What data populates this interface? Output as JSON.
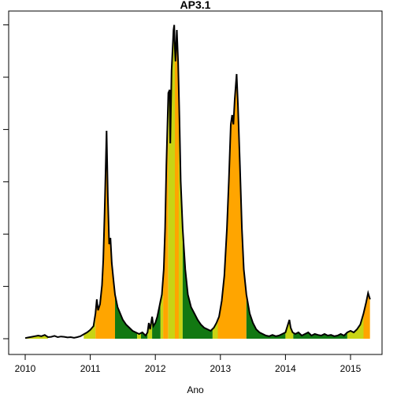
{
  "chart_data": {
    "type": "area",
    "title": "AP3.1",
    "xlabel": "Ano",
    "ylabel": "",
    "xlim": [
      2009.75,
      2015.5
    ],
    "ylim": [
      0,
      100
    ],
    "x_ticks": [
      2010,
      2011,
      2012,
      2013,
      2014,
      2015
    ],
    "x_tick_labels": [
      "2010",
      "2011",
      "2012",
      "2013",
      "2014",
      "2015"
    ],
    "y_ticks": [
      0,
      16.6,
      33.2,
      49.8,
      66.4,
      83.0,
      99.6
    ],
    "y_tick_labels": [],
    "grid": false,
    "legend": "none",
    "colors": {
      "line": "#000000",
      "yellow": "#c8d414",
      "orange": "#ffa500",
      "green": "#127812"
    },
    "bands": [
      {
        "x0": 2010.0,
        "x1": 2010.35,
        "color": "yellow"
      },
      {
        "x0": 2010.9,
        "x1": 2011.08,
        "color": "yellow"
      },
      {
        "x0": 2011.08,
        "x1": 2011.38,
        "color": "orange"
      },
      {
        "x0": 2011.38,
        "x1": 2011.72,
        "color": "green"
      },
      {
        "x0": 2011.72,
        "x1": 2011.78,
        "color": "yellow"
      },
      {
        "x0": 2011.78,
        "x1": 2011.88,
        "color": "green"
      },
      {
        "x0": 2011.88,
        "x1": 2011.95,
        "color": "yellow"
      },
      {
        "x0": 2011.95,
        "x1": 2012.08,
        "color": "green"
      },
      {
        "x0": 2012.08,
        "x1": 2012.12,
        "color": "yellow"
      },
      {
        "x0": 2012.12,
        "x1": 2012.2,
        "color": "orange"
      },
      {
        "x0": 2012.2,
        "x1": 2012.3,
        "color": "yellow"
      },
      {
        "x0": 2012.3,
        "x1": 2012.36,
        "color": "orange"
      },
      {
        "x0": 2012.36,
        "x1": 2012.42,
        "color": "yellow"
      },
      {
        "x0": 2012.42,
        "x1": 2012.88,
        "color": "green"
      },
      {
        "x0": 2012.88,
        "x1": 2012.96,
        "color": "yellow"
      },
      {
        "x0": 2012.96,
        "x1": 2013.4,
        "color": "orange"
      },
      {
        "x0": 2013.4,
        "x1": 2014.0,
        "color": "green"
      },
      {
        "x0": 2014.0,
        "x1": 2014.12,
        "color": "yellow"
      },
      {
        "x0": 2014.12,
        "x1": 2014.95,
        "color": "green"
      },
      {
        "x0": 2014.95,
        "x1": 2015.2,
        "color": "yellow"
      },
      {
        "x0": 2015.2,
        "x1": 2015.3,
        "color": "orange"
      }
    ],
    "series": [
      {
        "values": [
          [
            2010.0,
            0.2
          ],
          [
            2010.05,
            0.4
          ],
          [
            2010.1,
            0.6
          ],
          [
            2010.15,
            0.8
          ],
          [
            2010.2,
            1.0
          ],
          [
            2010.25,
            0.8
          ],
          [
            2010.3,
            1.2
          ],
          [
            2010.35,
            0.5
          ],
          [
            2010.4,
            0.6
          ],
          [
            2010.45,
            0.9
          ],
          [
            2010.5,
            0.5
          ],
          [
            2010.55,
            0.7
          ],
          [
            2010.6,
            0.6
          ],
          [
            2010.65,
            0.4
          ],
          [
            2010.7,
            0.5
          ],
          [
            2010.75,
            0.3
          ],
          [
            2010.8,
            0.5
          ],
          [
            2010.85,
            0.8
          ],
          [
            2010.9,
            1.4
          ],
          [
            2010.95,
            2.0
          ],
          [
            2011.0,
            2.8
          ],
          [
            2011.05,
            4.0
          ],
          [
            2011.08,
            8.0
          ],
          [
            2011.1,
            12.5
          ],
          [
            2011.12,
            9.0
          ],
          [
            2011.15,
            11.0
          ],
          [
            2011.18,
            17.0
          ],
          [
            2011.2,
            25.0
          ],
          [
            2011.22,
            40.0
          ],
          [
            2011.25,
            66.0
          ],
          [
            2011.27,
            45.0
          ],
          [
            2011.29,
            30.0
          ],
          [
            2011.31,
            32.0
          ],
          [
            2011.33,
            24.0
          ],
          [
            2011.36,
            18.0
          ],
          [
            2011.38,
            14.0
          ],
          [
            2011.42,
            10.0
          ],
          [
            2011.46,
            8.0
          ],
          [
            2011.5,
            6.0
          ],
          [
            2011.55,
            4.5
          ],
          [
            2011.6,
            3.5
          ],
          [
            2011.65,
            2.5
          ],
          [
            2011.7,
            2.0
          ],
          [
            2011.75,
            1.5
          ],
          [
            2011.8,
            2.0
          ],
          [
            2011.85,
            1.0
          ],
          [
            2011.88,
            2.0
          ],
          [
            2011.9,
            5.0
          ],
          [
            2011.92,
            3.0
          ],
          [
            2011.95,
            7.0
          ],
          [
            2011.97,
            4.0
          ],
          [
            2012.0,
            5.0
          ],
          [
            2012.03,
            7.0
          ],
          [
            2012.06,
            10.0
          ],
          [
            2012.08,
            12.0
          ],
          [
            2012.1,
            14.0
          ],
          [
            2012.13,
            22.0
          ],
          [
            2012.15,
            35.0
          ],
          [
            2012.17,
            55.0
          ],
          [
            2012.2,
            78.0
          ],
          [
            2012.22,
            79.0
          ],
          [
            2012.23,
            62.0
          ],
          [
            2012.25,
            85.0
          ],
          [
            2012.28,
            98.0
          ],
          [
            2012.29,
            99.6
          ],
          [
            2012.3,
            92.0
          ],
          [
            2012.31,
            88.0
          ],
          [
            2012.33,
            98.0
          ],
          [
            2012.35,
            88.0
          ],
          [
            2012.37,
            70.0
          ],
          [
            2012.39,
            50.0
          ],
          [
            2012.42,
            35.0
          ],
          [
            2012.46,
            22.0
          ],
          [
            2012.5,
            14.0
          ],
          [
            2012.55,
            10.0
          ],
          [
            2012.6,
            8.0
          ],
          [
            2012.65,
            6.0
          ],
          [
            2012.7,
            4.5
          ],
          [
            2012.75,
            3.5
          ],
          [
            2012.8,
            3.0
          ],
          [
            2012.85,
            2.5
          ],
          [
            2012.9,
            3.5
          ],
          [
            2012.94,
            5.0
          ],
          [
            2012.98,
            7.0
          ],
          [
            2013.02,
            12.0
          ],
          [
            2013.06,
            20.0
          ],
          [
            2013.1,
            35.0
          ],
          [
            2013.13,
            50.0
          ],
          [
            2013.16,
            68.0
          ],
          [
            2013.18,
            71.0
          ],
          [
            2013.2,
            68.0
          ],
          [
            2013.22,
            76.0
          ],
          [
            2013.25,
            84.0
          ],
          [
            2013.27,
            74.0
          ],
          [
            2013.3,
            55.0
          ],
          [
            2013.33,
            35.0
          ],
          [
            2013.36,
            22.0
          ],
          [
            2013.4,
            14.0
          ],
          [
            2013.45,
            8.0
          ],
          [
            2013.5,
            5.0
          ],
          [
            2013.55,
            3.0
          ],
          [
            2013.6,
            2.0
          ],
          [
            2013.65,
            1.5
          ],
          [
            2013.7,
            1.0
          ],
          [
            2013.75,
            0.8
          ],
          [
            2013.8,
            1.2
          ],
          [
            2013.85,
            0.8
          ],
          [
            2013.9,
            1.0
          ],
          [
            2013.95,
            1.5
          ],
          [
            2014.0,
            2.0
          ],
          [
            2014.03,
            4.0
          ],
          [
            2014.06,
            6.0
          ],
          [
            2014.08,
            3.5
          ],
          [
            2014.11,
            2.0
          ],
          [
            2014.15,
            1.5
          ],
          [
            2014.2,
            2.0
          ],
          [
            2014.25,
            1.0
          ],
          [
            2014.3,
            1.5
          ],
          [
            2014.35,
            2.0
          ],
          [
            2014.4,
            1.0
          ],
          [
            2014.45,
            1.5
          ],
          [
            2014.5,
            1.2
          ],
          [
            2014.55,
            1.0
          ],
          [
            2014.6,
            1.5
          ],
          [
            2014.65,
            1.0
          ],
          [
            2014.7,
            1.2
          ],
          [
            2014.75,
            0.8
          ],
          [
            2014.8,
            1.0
          ],
          [
            2014.85,
            1.5
          ],
          [
            2014.9,
            1.0
          ],
          [
            2014.95,
            2.0
          ],
          [
            2015.0,
            2.5
          ],
          [
            2015.05,
            2.0
          ],
          [
            2015.1,
            3.0
          ],
          [
            2015.15,
            4.5
          ],
          [
            2015.2,
            8.0
          ],
          [
            2015.24,
            11.5
          ],
          [
            2015.27,
            14.5
          ],
          [
            2015.3,
            12.5
          ]
        ]
      }
    ]
  }
}
